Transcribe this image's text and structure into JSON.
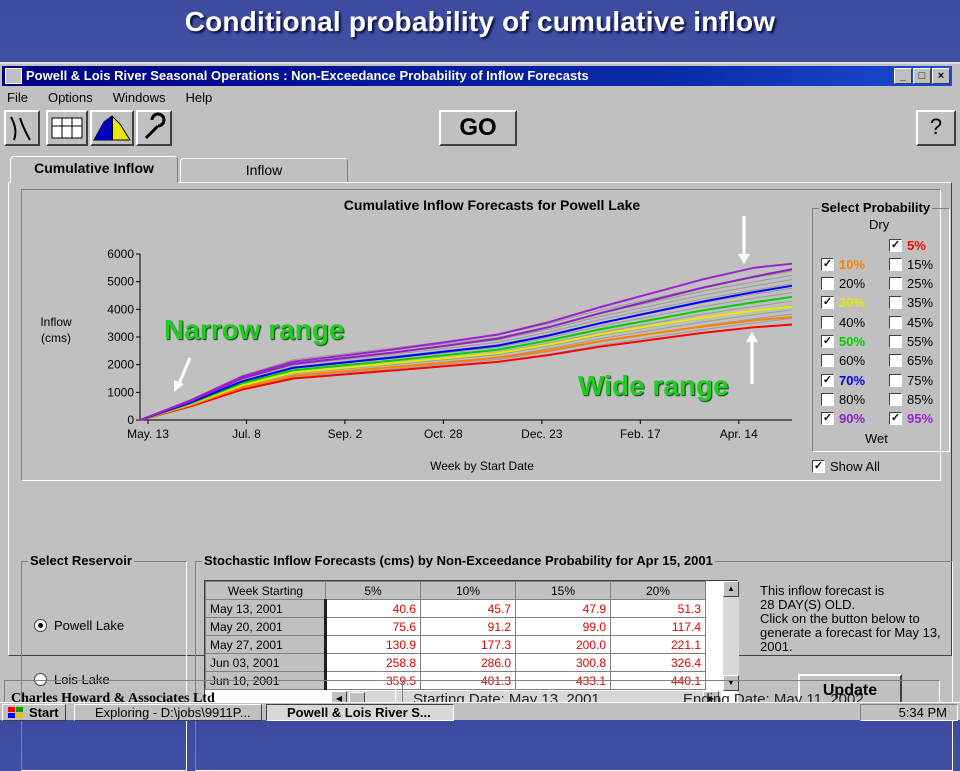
{
  "slide": {
    "title": "Conditional probability of cumulative inflow"
  },
  "window": {
    "title": "Powell & Lois River Seasonal Operations : Non-Exceedance Probability of Inflow Forecasts",
    "controls": [
      "_",
      "□",
      "×"
    ]
  },
  "menu": {
    "items": [
      "File",
      "Options",
      "Windows",
      "Help"
    ]
  },
  "toolbar": {
    "go_label": "GO",
    "help_label": "?"
  },
  "tabs": [
    {
      "label": "Cumulative Inflow"
    },
    {
      "label": "Inflow"
    }
  ],
  "chart_data": {
    "type": "line",
    "title": "Cumulative Inflow Forecasts for Powell Lake",
    "xlabel": "Week by Start Date",
    "ylabel_line1": "Inflow",
    "ylabel_line2": "(cms)",
    "x_ticks": [
      "May. 13",
      "Jul. 8",
      "Sep. 2",
      "Oct. 28",
      "Dec. 23",
      "Feb. 17",
      "Apr. 14"
    ],
    "y_ticks": [
      0,
      1000,
      2000,
      3000,
      4000,
      5000,
      6000
    ],
    "ylim": [
      0,
      6000
    ],
    "grid": false,
    "x_weeks": [
      0,
      4,
      8,
      12,
      16,
      20,
      24,
      28,
      32,
      36,
      40,
      44,
      48,
      51
    ],
    "series": [
      {
        "name": "5%",
        "color": "#ff0000",
        "values": [
          0,
          500,
          1100,
          1500,
          1650,
          1800,
          1950,
          2100,
          2350,
          2650,
          2900,
          3150,
          3350,
          3450
        ]
      },
      {
        "name": "10%",
        "color": "#ff8000",
        "values": [
          0,
          540,
          1180,
          1600,
          1760,
          1920,
          2080,
          2250,
          2520,
          2850,
          3120,
          3380,
          3600,
          3720
        ]
      },
      {
        "name": "30%",
        "color": "#e8e800",
        "values": [
          0,
          580,
          1260,
          1720,
          1890,
          2060,
          2240,
          2420,
          2730,
          3100,
          3400,
          3700,
          3950,
          4100
        ]
      },
      {
        "name": "50%",
        "color": "#00d000",
        "values": [
          0,
          610,
          1330,
          1800,
          1980,
          2160,
          2350,
          2540,
          2880,
          3280,
          3620,
          3960,
          4250,
          4450
        ]
      },
      {
        "name": "70%",
        "color": "#0000ff",
        "values": [
          0,
          640,
          1400,
          1890,
          2080,
          2270,
          2480,
          2690,
          3060,
          3500,
          3890,
          4280,
          4620,
          4850
        ]
      },
      {
        "name": "90%",
        "color": "#9020c0",
        "values": [
          0,
          690,
          1510,
          2030,
          2240,
          2450,
          2690,
          2940,
          3360,
          3860,
          4320,
          4780,
          5180,
          5450
        ]
      },
      {
        "name": "95%",
        "color": "#a020d0",
        "values": [
          0,
          720,
          1570,
          2110,
          2330,
          2560,
          2820,
          3090,
          3540,
          4080,
          4580,
          5080,
          5500,
          5650
        ]
      }
    ]
  },
  "probability": {
    "title": "Select Probability",
    "dry_label": "Dry",
    "wet_label": "Wet",
    "show_all_label": "Show All",
    "show_all_checked": true,
    "options": [
      {
        "label": "5%",
        "checked": true,
        "color": "#ff0000"
      },
      {
        "label": "10%",
        "checked": true,
        "color": "#ff8000"
      },
      {
        "label": "15%",
        "checked": false,
        "color": "#000000"
      },
      {
        "label": "20%",
        "checked": false,
        "color": "#000000"
      },
      {
        "label": "25%",
        "checked": false,
        "color": "#000000"
      },
      {
        "label": "30%",
        "checked": true,
        "color": "#e8e800"
      },
      {
        "label": "35%",
        "checked": false,
        "color": "#000000"
      },
      {
        "label": "40%",
        "checked": false,
        "color": "#000000"
      },
      {
        "label": "45%",
        "checked": false,
        "color": "#000000"
      },
      {
        "label": "50%",
        "checked": true,
        "color": "#00d000"
      },
      {
        "label": "55%",
        "checked": false,
        "color": "#000000"
      },
      {
        "label": "60%",
        "checked": false,
        "color": "#000000"
      },
      {
        "label": "65%",
        "checked": false,
        "color": "#000000"
      },
      {
        "label": "70%",
        "checked": true,
        "color": "#0000ff"
      },
      {
        "label": "75%",
        "checked": false,
        "color": "#000000"
      },
      {
        "label": "80%",
        "checked": false,
        "color": "#000000"
      },
      {
        "label": "85%",
        "checked": false,
        "color": "#000000"
      },
      {
        "label": "90%",
        "checked": true,
        "color": "#9020c0"
      },
      {
        "label": "95%",
        "checked": true,
        "color": "#a020d0"
      }
    ]
  },
  "reservoir": {
    "title": "Select Reservoir",
    "options": [
      {
        "label": "Powell Lake",
        "selected": true
      },
      {
        "label": "Lois Lake",
        "selected": false
      }
    ]
  },
  "forecast": {
    "title": "Stochastic Inflow Forecasts (cms) by Non-Exceedance Probability for Apr 15, 2001",
    "columns": [
      "Week Starting",
      "5%",
      "10%",
      "15%",
      "20%"
    ],
    "rows": [
      [
        "May 13, 2001",
        "40.6",
        "45.7",
        "47.9",
        "51.3"
      ],
      [
        "May 20, 2001",
        "75.6",
        "91.2",
        "99.0",
        "117.4"
      ],
      [
        "May 27, 2001",
        "130.9",
        "177.3",
        "200.0",
        "221.1"
      ],
      [
        "Jun 03, 2001",
        "258.8",
        "286.0",
        "300.8",
        "326.4"
      ],
      [
        "Jun 10, 2001",
        "359.5",
        "401.3",
        "433.1",
        "440.1"
      ]
    ],
    "info_lines": [
      "This inflow forecast is",
      "28 DAY(S) OLD.",
      "Click on the button below to",
      "generate a forecast for May 13,",
      "2001."
    ],
    "update_label": "Update"
  },
  "status": {
    "company": "Charles Howard & Associates Ltd",
    "starting_date": "Starting Date:  May 13, 2001",
    "ending_date": "Ending Date:  May 11, 2002"
  },
  "taskbar": {
    "start_label": "Start",
    "items": [
      {
        "label": "Exploring - D:\\jobs\\9911P..."
      },
      {
        "label": "Powell & Lois River S..."
      }
    ],
    "clock": "5:34 PM"
  },
  "annotations": {
    "narrow_label": "Narrow range",
    "wide_label": "Wide range"
  }
}
